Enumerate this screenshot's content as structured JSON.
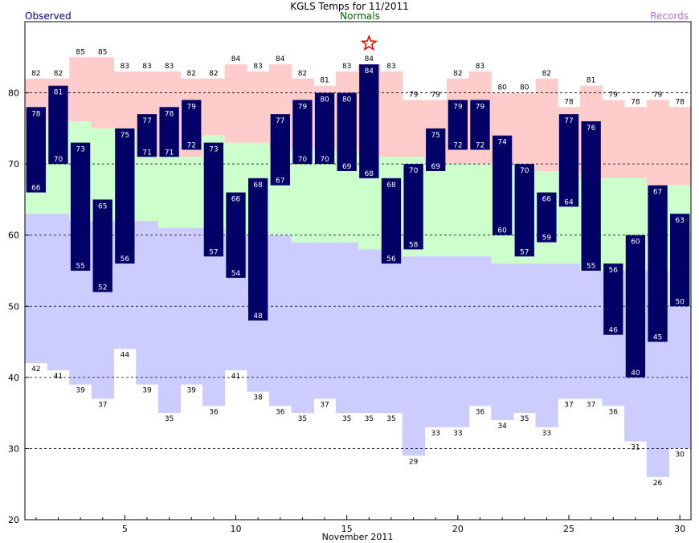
{
  "chart_data": {
    "type": "bar",
    "title": "KGLS Temps for 11/2011",
    "legend": {
      "observed": "Observed",
      "normals": "Normals",
      "records": "Records"
    },
    "xlabel": "November 2011",
    "x_ticks": [
      5,
      10,
      15,
      20,
      25,
      30
    ],
    "y_ticks": [
      20,
      30,
      40,
      50,
      60,
      70,
      80
    ],
    "ylim": [
      20,
      90
    ],
    "xlim": [
      0.5,
      30.5
    ],
    "grid": "horizontal dashed at 30, 40, 50, 60, 70, 80",
    "days": [
      1,
      2,
      3,
      4,
      5,
      6,
      7,
      8,
      9,
      10,
      11,
      12,
      13,
      14,
      15,
      16,
      17,
      18,
      19,
      20,
      21,
      22,
      23,
      24,
      25,
      26,
      27,
      28,
      29,
      30
    ],
    "record_high": [
      82,
      82,
      85,
      85,
      83,
      83,
      83,
      82,
      82,
      84,
      83,
      84,
      82,
      81,
      83,
      84,
      83,
      79,
      79,
      82,
      83,
      80,
      80,
      82,
      78,
      81,
      79,
      78,
      79,
      78
    ],
    "record_low": [
      42,
      41,
      39,
      37,
      44,
      39,
      35,
      39,
      36,
      41,
      38,
      36,
      35,
      37,
      35,
      35,
      35,
      29,
      33,
      33,
      36,
      34,
      35,
      33,
      37,
      37,
      36,
      31,
      26,
      30
    ],
    "normal_high": [
      76,
      76,
      76,
      75,
      75,
      71,
      71,
      71,
      74,
      73,
      73,
      72,
      72,
      72,
      72,
      71,
      71,
      71,
      70,
      70,
      70,
      70,
      70,
      69,
      69,
      68,
      68,
      68,
      67,
      67
    ],
    "normal_low": [
      63,
      63,
      62,
      62,
      62,
      62,
      61,
      61,
      61,
      60,
      60,
      60,
      59,
      59,
      59,
      58,
      58,
      57,
      57,
      57,
      57,
      56,
      56,
      56,
      56,
      55,
      55,
      55,
      55,
      50
    ],
    "observed_high": [
      78,
      81,
      73,
      65,
      75,
      77,
      78,
      79,
      73,
      66,
      68,
      77,
      79,
      80,
      80,
      84,
      68,
      70,
      75,
      79,
      79,
      74,
      70,
      66,
      77,
      76,
      56,
      60,
      67,
      63
    ],
    "observed_low": [
      66,
      70,
      55,
      52,
      56,
      71,
      71,
      72,
      57,
      54,
      48,
      67,
      70,
      70,
      69,
      68,
      56,
      58,
      69,
      72,
      72,
      60,
      57,
      59,
      64,
      55,
      46,
      40,
      45,
      50
    ],
    "record_marker": {
      "day": 16,
      "value": 84,
      "symbol": "star"
    },
    "colors": {
      "record_band": "#ffcccc",
      "normal_band": "#ccffcc",
      "low_band": "#ccccff",
      "observed_bar": "#000066",
      "grid": "#000000",
      "star": "#ff0000",
      "normals_text": "#006400",
      "observed_text": "#000080",
      "records_text": "#b070d0"
    }
  }
}
